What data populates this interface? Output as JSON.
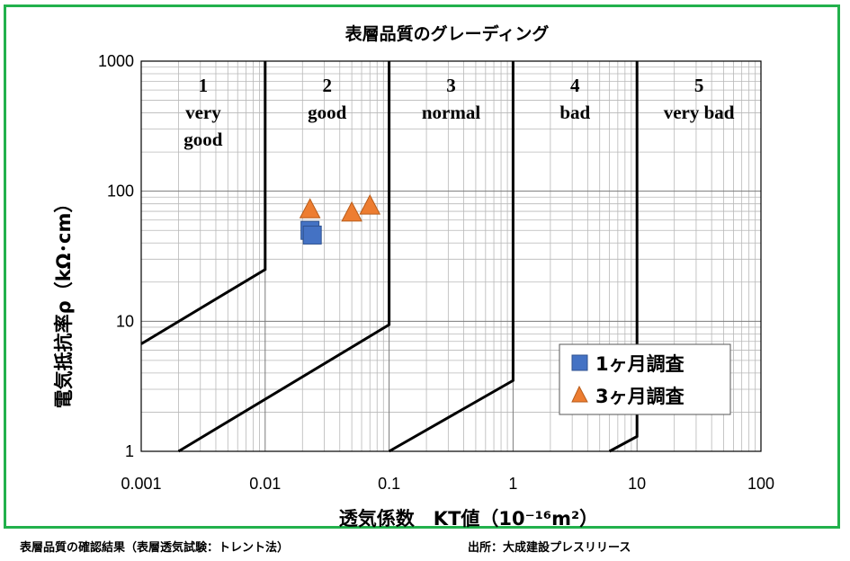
{
  "caption_left": "表層品質の確認結果（表層透気試験：トレント法）",
  "caption_right": "出所：大成建設プレスリリース",
  "colors": {
    "frame": "#22b14c",
    "series_1_fill": "#4472c4",
    "series_2_fill": "#ed7d31"
  },
  "chart_data": {
    "type": "scatter",
    "title": "表層品質のグレーディング",
    "xlabel": "透気係数　KT値（10⁻¹⁶m²）",
    "ylabel": "電気抵抗率ρ（kΩ･cm）",
    "x_scale": "log",
    "y_scale": "log",
    "xlim": [
      0.001,
      100
    ],
    "ylim": [
      1,
      1000
    ],
    "x_ticks": [
      "0.001",
      "0.01",
      "0.1",
      "1",
      "10",
      "100"
    ],
    "y_ticks": [
      "1",
      "10",
      "100",
      "1000"
    ],
    "grid": true,
    "legend_position": "lower-right",
    "grade_zones": [
      {
        "number": "1",
        "label_lines": [
          "very",
          "good"
        ]
      },
      {
        "number": "2",
        "label_lines": [
          "good"
        ]
      },
      {
        "number": "3",
        "label_lines": [
          "normal"
        ]
      },
      {
        "number": "4",
        "label_lines": [
          "bad"
        ]
      },
      {
        "number": "5",
        "label_lines": [
          "very bad"
        ]
      }
    ],
    "boundaries": [
      {
        "points": [
          [
            0.001,
            6.7
          ],
          [
            0.01,
            25
          ],
          [
            0.01,
            1000
          ]
        ]
      },
      {
        "points": [
          [
            0.002,
            1
          ],
          [
            0.1,
            9.4
          ],
          [
            0.1,
            1000
          ]
        ]
      },
      {
        "points": [
          [
            0.1,
            1
          ],
          [
            1,
            3.5
          ],
          [
            1,
            1000
          ]
        ]
      },
      {
        "points": [
          [
            6,
            1
          ],
          [
            10,
            1.3
          ],
          [
            10,
            1000
          ]
        ]
      }
    ],
    "series": [
      {
        "name": "1ヶ月調査",
        "marker": "square",
        "color": "#4472c4",
        "points": [
          [
            0.023,
            50
          ],
          [
            0.024,
            46
          ]
        ]
      },
      {
        "name": "3ヶ月調査",
        "marker": "triangle",
        "color": "#ed7d31",
        "points": [
          [
            0.023,
            72
          ],
          [
            0.05,
            68
          ],
          [
            0.07,
            77
          ]
        ]
      }
    ]
  }
}
